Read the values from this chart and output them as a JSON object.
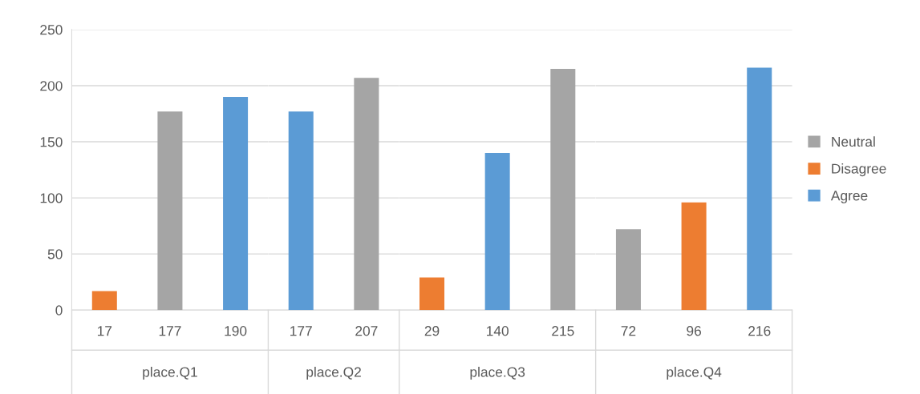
{
  "chart_data": [
    {
      "type": "bar",
      "title": "place.Q1",
      "categories": [
        "17",
        "177",
        "190"
      ],
      "ylim": [
        0,
        250
      ],
      "yticks": [
        0,
        50,
        100,
        150,
        200,
        250
      ],
      "grid": "y",
      "series": [
        {
          "color": "#a5a5a5",
          "values": [
            null,
            177,
            null
          ]
        },
        {
          "color": "#ed7d31",
          "values": [
            17,
            null,
            null
          ]
        },
        {
          "color": "#5b9bd5",
          "values": [
            null,
            null,
            190
          ]
        }
      ]
    },
    {
      "type": "bar",
      "title": "place.Q2",
      "categories": [
        "177",
        "207"
      ],
      "ylim": [
        0,
        250
      ],
      "yticks": [
        0,
        50,
        100,
        150,
        200,
        250
      ],
      "grid": "y",
      "tick_labels": "x",
      "series": [
        {
          "color": "#a5a5a5",
          "values": [
            null,
            207
          ]
        },
        {
          "color": "#ed7d31",
          "values": [
            null,
            null
          ]
        },
        {
          "color": "#5b9bd5",
          "values": [
            177,
            null
          ]
        }
      ]
    },
    {
      "type": "bar",
      "title": "place.Q3",
      "categories": [
        "29",
        "140",
        "215"
      ],
      "ylim": [
        0,
        250
      ],
      "yticks": [
        0,
        50,
        100,
        150,
        200,
        250
      ],
      "grid": "y",
      "tick_labels": "x",
      "series": [
        {
          "color": "#a5a5a5",
          "values": [
            null,
            null,
            215
          ]
        },
        {
          "color": "#ed7d31",
          "values": [
            29,
            null,
            null
          ]
        },
        {
          "color": "#5b9bd5",
          "values": [
            null,
            140,
            null
          ]
        }
      ]
    },
    {
      "type": "bar",
      "title": "place.Q4",
      "categories": [
        "72",
        "96",
        "216"
      ],
      "ylim": [
        0,
        250
      ],
      "yticks": [
        0,
        50,
        100,
        150,
        200,
        250
      ],
      "grid": "y",
      "tick_labels": "x",
      "legend": "right",
      "series": [
        {
          "name": "Neutral",
          "color": "#a5a5a5",
          "values": [
            72,
            null,
            null
          ]
        },
        {
          "name": "Disagree",
          "color": "#ed7d31",
          "values": [
            null,
            96,
            null
          ]
        },
        {
          "name": "Agree",
          "color": "#5b9bd5",
          "values": [
            null,
            null,
            216
          ]
        }
      ]
    }
  ]
}
